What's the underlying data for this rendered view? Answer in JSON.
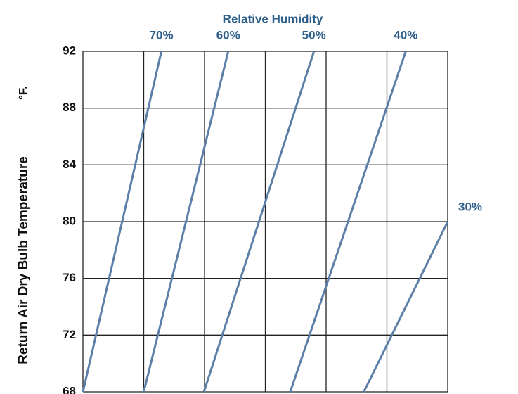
{
  "chart_data": {
    "type": "line",
    "title": "Relative Humidity",
    "y_label": "Return Air Dry Bulb Temperature",
    "y_unit": "°F.",
    "xlim": [
      0,
      6
    ],
    "xticks": [
      0,
      1,
      2,
      3,
      4,
      5,
      6
    ],
    "ylim": [
      68,
      92
    ],
    "yticks": [
      68,
      72,
      76,
      80,
      84,
      88,
      92
    ],
    "grid": true,
    "series": [
      {
        "name": "70%",
        "color": "#5b7fa6",
        "x": [
          0,
          1.29
        ],
        "values": [
          68,
          92
        ]
      },
      {
        "name": "60%",
        "color": "#5b7fa6",
        "x": [
          1.0,
          2.39
        ],
        "values": [
          68,
          92
        ]
      },
      {
        "name": "50%",
        "color": "#5b7fa6",
        "x": [
          1.99,
          3.8
        ],
        "values": [
          68,
          92
        ]
      },
      {
        "name": "40%",
        "color": "#5b7fa6",
        "x": [
          3.41,
          5.31
        ],
        "values": [
          68,
          92
        ]
      },
      {
        "name": "30%",
        "color": "#5b7fa6",
        "x": [
          4.62,
          6
        ],
        "values": [
          68,
          80
        ]
      }
    ]
  }
}
